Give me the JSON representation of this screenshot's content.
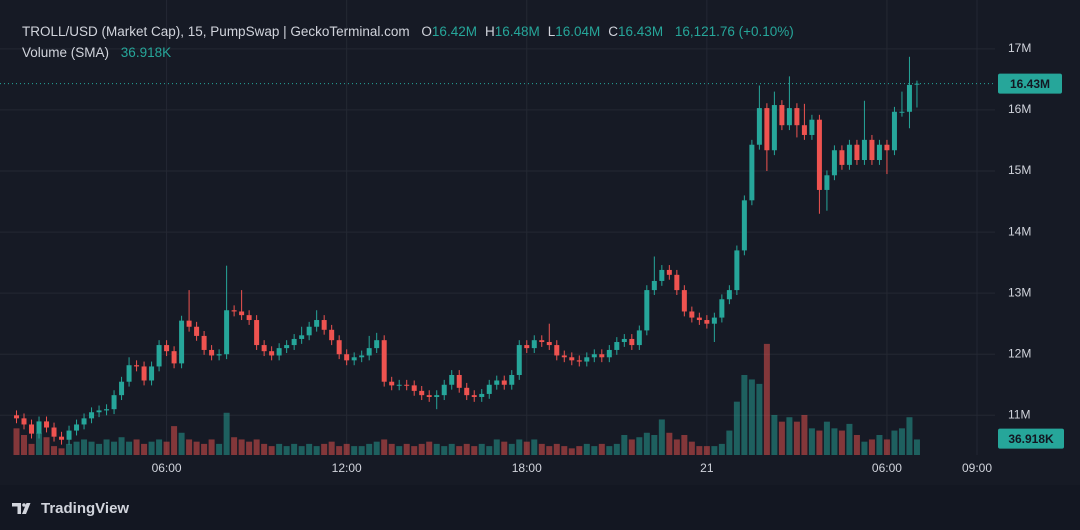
{
  "chart_data": {
    "type": "candlestick",
    "legend": {
      "title": "TROLL/USD (Market Cap), 15, PumpSwap | GeckoTerminal.com",
      "ohlc": [
        [
          "O",
          "16.42M"
        ],
        [
          "H",
          "16.48M"
        ],
        [
          "L",
          "16.04M"
        ],
        [
          "C",
          "16.43M"
        ]
      ],
      "change": "16,121.76 (+0.10%)",
      "volume_title": "Volume (SMA)"
    },
    "brand": "TradingView",
    "up_color": "#26a69a",
    "down_color": "#ef5350",
    "grid": true,
    "xlim": [
      0.45,
      33.6
    ],
    "xticks": [
      {
        "value": 6,
        "label": "06:00"
      },
      {
        "value": 12,
        "label": "12:00"
      },
      {
        "value": 18,
        "label": "18:00"
      },
      {
        "value": 24,
        "label": "21"
      },
      {
        "value": 30,
        "label": "06:00"
      },
      {
        "value": 33,
        "label": "09:00"
      }
    ],
    "ylim": [
      10.35,
      17.8
    ],
    "yticks": [
      {
        "value": 11,
        "label": "11M"
      },
      {
        "value": 12,
        "label": "12M"
      },
      {
        "value": 13,
        "label": "13M"
      },
      {
        "value": 14,
        "label": "14M"
      },
      {
        "value": 15,
        "label": "15M"
      },
      {
        "value": 16,
        "label": "16M"
      },
      {
        "value": 17,
        "label": "17M"
      }
    ],
    "vlim": [
      0,
      270000
    ],
    "price_line": {
      "value": 16.43,
      "label": "16.43M"
    },
    "volume_sma": {
      "value": 36918,
      "label": "36.918K"
    },
    "x": [
      1,
      1.25,
      1.5,
      1.75,
      2,
      2.25,
      2.5,
      2.75,
      3,
      3.25,
      3.5,
      3.75,
      4,
      4.25,
      4.5,
      4.75,
      5,
      5.25,
      5.5,
      5.75,
      6,
      6.25,
      6.5,
      6.75,
      7,
      7.25,
      7.5,
      7.75,
      8,
      8.25,
      8.5,
      8.75,
      9,
      9.25,
      9.5,
      9.75,
      10,
      10.25,
      10.5,
      10.75,
      11,
      11.25,
      11.5,
      11.75,
      12,
      12.25,
      12.5,
      12.75,
      13,
      13.25,
      13.5,
      13.75,
      14,
      14.25,
      14.5,
      14.75,
      15,
      15.25,
      15.5,
      15.75,
      16,
      16.25,
      16.5,
      16.75,
      17,
      17.25,
      17.5,
      17.75,
      18,
      18.25,
      18.5,
      18.75,
      19,
      19.25,
      19.5,
      19.75,
      20,
      20.25,
      20.5,
      20.75,
      21,
      21.25,
      21.5,
      21.75,
      22,
      22.25,
      22.5,
      22.75,
      23,
      23.25,
      23.5,
      23.75,
      24,
      24.25,
      24.5,
      24.75,
      25,
      25.25,
      25.5,
      25.75,
      26,
      26.25,
      26.5,
      26.75,
      27,
      27.25,
      27.5,
      27.75,
      28,
      28.25,
      28.5,
      28.75,
      29,
      29.25,
      29.5,
      29.75,
      30,
      30.25,
      30.5,
      30.75,
      31
    ],
    "open": [
      11.0,
      10.95,
      10.85,
      10.7,
      10.9,
      10.8,
      10.65,
      10.6,
      10.75,
      10.85,
      10.95,
      11.05,
      11.08,
      11.1,
      11.33,
      11.55,
      11.82,
      11.8,
      11.57,
      11.8,
      12.15,
      12.05,
      11.85,
      12.55,
      12.45,
      12.3,
      12.07,
      11.98,
      12.0,
      12.72,
      12.7,
      12.64,
      12.56,
      12.15,
      12.05,
      11.98,
      12.1,
      12.15,
      12.25,
      12.31,
      12.45,
      12.56,
      12.4,
      12.23,
      12.0,
      11.9,
      11.95,
      11.98,
      12.1,
      12.23,
      11.55,
      11.49,
      11.5,
      11.49,
      11.4,
      11.33,
      11.3,
      11.33,
      11.5,
      11.66,
      11.45,
      11.33,
      11.3,
      11.35,
      11.5,
      11.57,
      11.5,
      11.66,
      12.15,
      12.1,
      12.23,
      12.2,
      12.15,
      11.98,
      11.95,
      11.9,
      11.88,
      11.95,
      12.0,
      11.95,
      12.07,
      12.2,
      12.25,
      12.15,
      12.39,
      13.05,
      13.2,
      13.38,
      13.3,
      13.05,
      12.7,
      12.6,
      12.56,
      12.5,
      12.6,
      12.9,
      13.05,
      13.7,
      14.52,
      15.43,
      16.03,
      15.34,
      16.08,
      15.75,
      16.03,
      15.75,
      15.59,
      15.84,
      14.69,
      14.93,
      15.34,
      15.1,
      15.43,
      15.18,
      15.51,
      15.18,
      15.43,
      15.34,
      15.97,
      15.97,
      16.42
    ],
    "high": [
      11.08,
      11.03,
      10.93,
      10.98,
      10.98,
      10.88,
      10.73,
      10.83,
      10.93,
      11.03,
      11.13,
      11.16,
      11.18,
      11.41,
      11.63,
      11.95,
      11.9,
      11.88,
      11.88,
      12.23,
      12.23,
      12.13,
      12.63,
      13.05,
      12.53,
      12.38,
      12.15,
      12.08,
      13.45,
      12.8,
      13.05,
      12.72,
      12.64,
      12.23,
      12.13,
      12.18,
      12.23,
      12.33,
      12.45,
      12.53,
      12.72,
      12.64,
      12.48,
      12.31,
      12.08,
      12.03,
      12.06,
      12.3,
      12.35,
      12.31,
      11.63,
      11.58,
      11.58,
      11.57,
      11.48,
      11.41,
      11.41,
      11.58,
      11.74,
      11.74,
      11.53,
      11.41,
      11.43,
      11.58,
      11.65,
      11.65,
      11.74,
      12.23,
      12.23,
      12.31,
      12.31,
      12.5,
      12.23,
      12.06,
      12.03,
      11.98,
      12.03,
      12.08,
      12.08,
      12.15,
      12.28,
      12.33,
      12.33,
      12.47,
      13.13,
      13.6,
      13.46,
      13.46,
      13.38,
      13.13,
      12.78,
      12.68,
      12.64,
      12.68,
      12.98,
      13.13,
      13.78,
      14.6,
      15.51,
      16.4,
      16.11,
      16.3,
      16.16,
      16.55,
      16.11,
      16.1,
      15.92,
      15.92,
      15.01,
      15.42,
      15.42,
      15.51,
      15.51,
      16.15,
      15.59,
      15.51,
      15.51,
      16.05,
      16.3,
      16.87,
      16.48
    ],
    "low": [
      10.87,
      10.77,
      10.62,
      10.62,
      10.72,
      10.57,
      10.52,
      10.52,
      10.67,
      10.77,
      10.87,
      10.97,
      11.0,
      11.02,
      11.25,
      11.47,
      11.72,
      11.49,
      11.49,
      11.72,
      11.97,
      11.77,
      11.77,
      12.37,
      12.22,
      11.99,
      11.9,
      11.9,
      11.92,
      12.62,
      12.56,
      12.48,
      12.07,
      11.97,
      11.9,
      11.9,
      12.02,
      12.07,
      12.17,
      12.23,
      12.37,
      12.32,
      12.15,
      11.92,
      11.82,
      11.82,
      11.87,
      11.9,
      12.02,
      11.47,
      11.41,
      11.41,
      11.41,
      11.32,
      11.25,
      11.22,
      11.1,
      11.25,
      11.42,
      11.37,
      11.25,
      11.22,
      11.22,
      11.27,
      11.42,
      11.42,
      11.42,
      11.58,
      12.02,
      12.02,
      12.12,
      12.07,
      11.9,
      11.87,
      11.82,
      11.8,
      11.8,
      11.87,
      11.87,
      11.87,
      11.99,
      12.12,
      12.07,
      12.07,
      12.31,
      12.97,
      13.12,
      13.22,
      12.97,
      12.62,
      12.52,
      12.48,
      12.42,
      12.2,
      12.52,
      12.82,
      12.97,
      13.62,
      14.44,
      15.35,
      15.0,
      15.26,
      15.67,
      15.67,
      15.55,
      15.51,
      15.51,
      14.3,
      14.35,
      14.85,
      15.02,
      15.02,
      15.1,
      15.1,
      15.1,
      15.1,
      14.95,
      15.26,
      15.89,
      15.7,
      16.04
    ],
    "close": [
      10.95,
      10.85,
      10.7,
      10.9,
      10.8,
      10.65,
      10.6,
      10.75,
      10.85,
      10.95,
      11.05,
      11.08,
      11.1,
      11.33,
      11.55,
      11.82,
      11.8,
      11.57,
      11.8,
      12.15,
      12.05,
      11.85,
      12.55,
      12.45,
      12.3,
      12.07,
      11.98,
      12.0,
      12.72,
      12.7,
      12.64,
      12.56,
      12.15,
      12.05,
      11.98,
      12.1,
      12.15,
      12.25,
      12.31,
      12.45,
      12.56,
      12.4,
      12.23,
      12.0,
      11.9,
      11.95,
      11.98,
      12.1,
      12.23,
      11.55,
      11.49,
      11.5,
      11.49,
      11.4,
      11.33,
      11.3,
      11.33,
      11.5,
      11.66,
      11.45,
      11.33,
      11.3,
      11.35,
      11.5,
      11.57,
      11.5,
      11.66,
      12.15,
      12.1,
      12.23,
      12.2,
      12.15,
      11.98,
      11.95,
      11.9,
      11.88,
      11.95,
      12.0,
      11.95,
      12.07,
      12.2,
      12.25,
      12.15,
      12.39,
      13.05,
      13.2,
      13.38,
      13.3,
      13.05,
      12.7,
      12.6,
      12.56,
      12.5,
      12.6,
      12.9,
      13.05,
      13.7,
      14.52,
      15.43,
      16.03,
      15.34,
      16.08,
      15.75,
      16.03,
      15.75,
      15.59,
      15.84,
      14.69,
      14.93,
      15.34,
      15.1,
      15.43,
      15.18,
      15.51,
      15.18,
      15.43,
      15.34,
      15.97,
      15.97,
      16.41,
      16.43
    ],
    "volume": [
      60000,
      45000,
      25000,
      50000,
      40000,
      20000,
      15000,
      25000,
      30000,
      35000,
      30000,
      25000,
      35000,
      30000,
      40000,
      30000,
      35000,
      25000,
      30000,
      35000,
      30000,
      65000,
      50000,
      35000,
      30000,
      25000,
      35000,
      25000,
      95000,
      40000,
      35000,
      30000,
      35000,
      25000,
      20000,
      25000,
      20000,
      25000,
      20000,
      25000,
      20000,
      25000,
      30000,
      20000,
      25000,
      20000,
      20000,
      25000,
      30000,
      35000,
      25000,
      20000,
      25000,
      20000,
      25000,
      30000,
      25000,
      20000,
      25000,
      20000,
      25000,
      20000,
      25000,
      20000,
      35000,
      30000,
      25000,
      35000,
      30000,
      35000,
      25000,
      20000,
      25000,
      20000,
      15000,
      20000,
      25000,
      20000,
      25000,
      20000,
      25000,
      45000,
      35000,
      40000,
      50000,
      45000,
      80000,
      50000,
      35000,
      45000,
      30000,
      20000,
      20000,
      20000,
      25000,
      55000,
      120000,
      180000,
      170000,
      160000,
      250000,
      90000,
      75000,
      85000,
      75000,
      90000,
      60000,
      55000,
      75000,
      60000,
      55000,
      70000,
      45000,
      30000,
      35000,
      45000,
      35000,
      55000,
      60000,
      85000,
      35000
    ]
  }
}
